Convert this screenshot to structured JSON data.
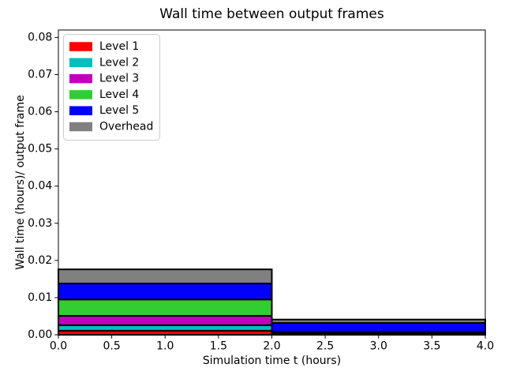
{
  "figure": {
    "title": "Wall time between output frames",
    "xlabel": "Simulation time t (hours)",
    "ylabel": "Wall time (hours)/ output frame"
  },
  "chart_data": {
    "type": "bar",
    "stacked": true,
    "title": "Wall time between output frames",
    "xlabel": "Simulation time t (hours)",
    "ylabel": "Wall time (hours)/ output frame",
    "xlim": [
      0.0,
      4.0
    ],
    "ylim": [
      0.0,
      0.082
    ],
    "x_tick_values": [
      0.0,
      0.5,
      1.0,
      1.5,
      2.0,
      2.5,
      3.0,
      3.5,
      4.0
    ],
    "x_tick_labels": [
      "0.0",
      "0.5",
      "1.0",
      "1.5",
      "2.0",
      "2.5",
      "3.0",
      "3.5",
      "4.0"
    ],
    "y_tick_values": [
      0.0,
      0.01,
      0.02,
      0.03,
      0.04,
      0.05,
      0.06,
      0.07,
      0.08
    ],
    "y_tick_labels": [
      "0.00",
      "0.01",
      "0.02",
      "0.03",
      "0.04",
      "0.05",
      "0.06",
      "0.07",
      "0.08"
    ],
    "bin_edges": [
      0.0,
      2.0,
      4.0
    ],
    "series": [
      {
        "name": "Level 1",
        "color": "#ff0000",
        "values": [
          0.0011,
          0.0002
        ]
      },
      {
        "name": "Level 2",
        "color": "#00bfbf",
        "values": [
          0.0015,
          0.0002
        ]
      },
      {
        "name": "Level 3",
        "color": "#bf00bf",
        "values": [
          0.0025,
          0.0002
        ]
      },
      {
        "name": "Level 4",
        "color": "#32cd32",
        "values": [
          0.0044,
          0.0002
        ]
      },
      {
        "name": "Level 5",
        "color": "#0000ff",
        "values": [
          0.0043,
          0.0024
        ]
      },
      {
        "name": "Overhead",
        "color": "#808080",
        "values": [
          0.0038,
          0.0009
        ]
      }
    ],
    "bar_totals": [
      0.0176,
      0.0041
    ],
    "bar_edge_color": "#000000",
    "axis_color": "#000000",
    "legend": {
      "position": "upper left",
      "entries": [
        "Level 1",
        "Level 2",
        "Level 3",
        "Level 4",
        "Level 5",
        "Overhead"
      ],
      "frame_color": "#cccccc"
    },
    "grid": false,
    "background_color": "#ffffff"
  }
}
